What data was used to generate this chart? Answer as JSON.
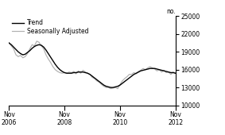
{
  "title": "",
  "ylabel": "no.",
  "ylim": [
    10000,
    25000
  ],
  "yticks": [
    10000,
    13000,
    16000,
    19000,
    22000,
    25000
  ],
  "trend_color": "#000000",
  "seas_color": "#b0b0b0",
  "background_color": "#ffffff",
  "legend_trend": "Trend",
  "legend_seas": "Seasonally Adjusted",
  "trend_data": [
    20500,
    20200,
    19800,
    19400,
    19000,
    18700,
    18500,
    18600,
    18900,
    19200,
    19600,
    19900,
    20100,
    20200,
    20100,
    19800,
    19300,
    18700,
    18100,
    17500,
    16900,
    16400,
    16000,
    15700,
    15500,
    15400,
    15400,
    15400,
    15500,
    15500,
    15600,
    15600,
    15600,
    15500,
    15400,
    15200,
    14900,
    14600,
    14300,
    14000,
    13700,
    13400,
    13200,
    13100,
    13000,
    13000,
    13100,
    13200,
    13400,
    13700,
    14000,
    14300,
    14600,
    14900,
    15200,
    15400,
    15600,
    15800,
    15900,
    16000,
    16100,
    16200,
    16200,
    16200,
    16100,
    16000,
    15900,
    15800,
    15700,
    15600,
    15500,
    15500,
    15400
  ],
  "seas_data": [
    20500,
    20000,
    19500,
    18500,
    18200,
    18400,
    18000,
    18200,
    18700,
    19500,
    20200,
    20000,
    20800,
    20600,
    20000,
    19500,
    18500,
    17800,
    17200,
    16500,
    16000,
    15700,
    15500,
    15400,
    15500,
    15400,
    15600,
    15500,
    15700,
    15300,
    15800,
    15400,
    15900,
    15600,
    15400,
    15200,
    14700,
    14500,
    14100,
    13900,
    13500,
    13200,
    13000,
    13000,
    12800,
    12900,
    13000,
    12800,
    13500,
    14100,
    14500,
    14800,
    15200,
    15200,
    15500,
    15300,
    15700,
    15900,
    16200,
    16000,
    16300,
    16500,
    16300,
    16100,
    15800,
    16000,
    15600,
    15900,
    15500,
    15600,
    15200,
    15600,
    15400
  ]
}
